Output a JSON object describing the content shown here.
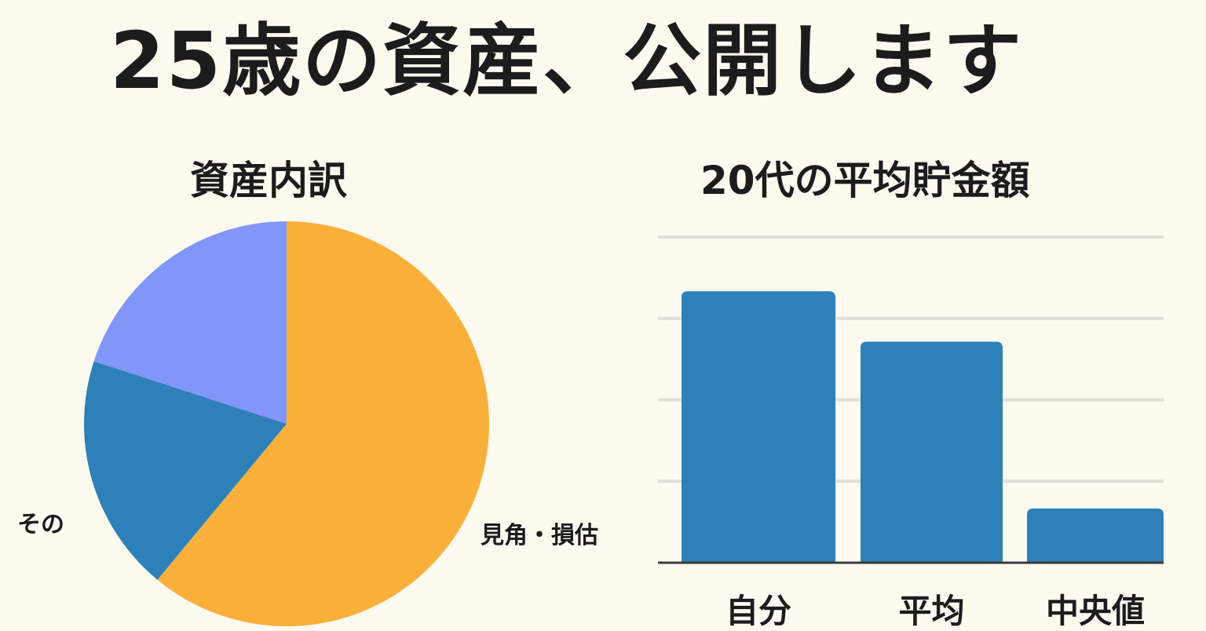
{
  "page_title": "25歳の資産、公開します",
  "colors": {
    "background": "#FDFAF0",
    "text": "#1C1C1C",
    "pie_orange": "#FBB03B",
    "pie_blue": "#2E81B8",
    "pie_lavender": "#8296F9",
    "bar_blue": "#2E81B8",
    "grid": "#E2E0D6"
  },
  "chart_data": [
    {
      "type": "pie",
      "title": "資産内訳",
      "slices": [
        {
          "label": "見角・損估",
          "value": 61
        },
        {
          "label": "その",
          "value": 19
        },
        {
          "label": "",
          "value": 20
        }
      ]
    },
    {
      "type": "bar",
      "title": "20代の平均貯金額",
      "categories": [
        "自分",
        "平均",
        "中央値"
      ],
      "values": [
        350,
        285,
        70
      ],
      "ylim": [
        0,
        420
      ],
      "grid": true
    }
  ]
}
